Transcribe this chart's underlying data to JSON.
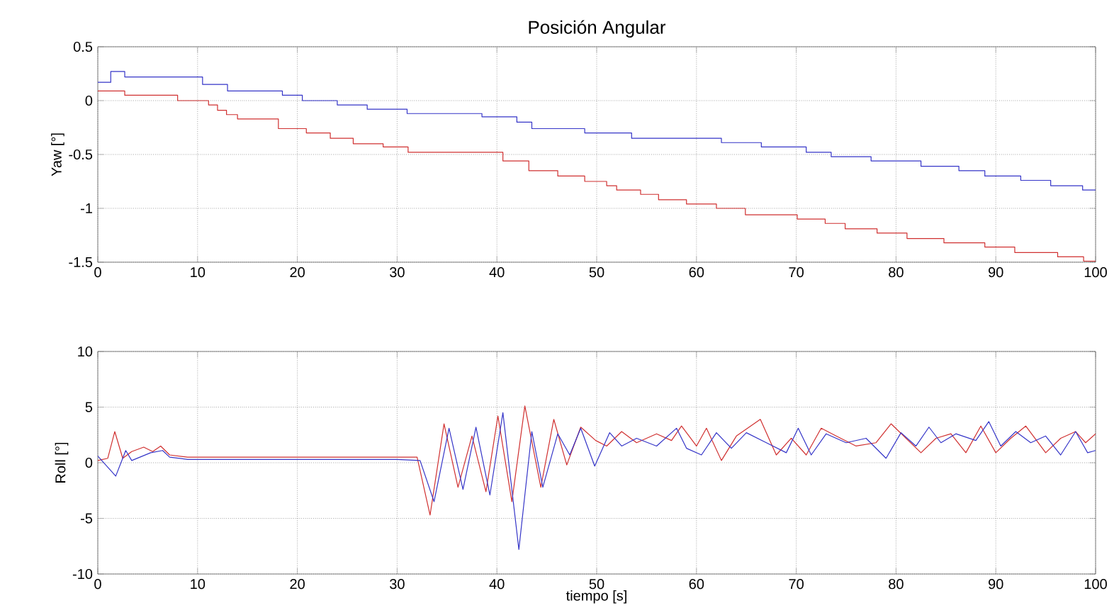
{
  "chart_data": [
    {
      "type": "step",
      "title": "Posición Angular",
      "ylabel": "Yaw [°]",
      "xlim": [
        0,
        100
      ],
      "ylim": [
        -1.5,
        0.5
      ],
      "xticks": [
        0,
        10,
        20,
        30,
        40,
        50,
        60,
        70,
        80,
        90,
        100
      ],
      "yticks": [
        -1.5,
        -1,
        -0.5,
        0,
        0.5
      ],
      "grid": true,
      "series": [
        {
          "color": "#3535c8",
          "x": [
            0,
            1.3,
            2.7,
            10.5,
            13,
            18.5,
            20.5,
            24,
            27,
            31,
            38.5,
            42,
            43.5,
            48.8,
            53.5,
            62.5,
            66.5,
            71,
            73.5,
            77.5,
            82.5,
            86.3,
            88.9,
            92.5,
            95.5,
            98.7,
            100
          ],
          "values": [
            0.17,
            0.27,
            0.22,
            0.15,
            0.09,
            0.05,
            0,
            -0.04,
            -0.08,
            -0.12,
            -0.15,
            -0.2,
            -0.26,
            -0.3,
            -0.35,
            -0.39,
            -0.43,
            -0.48,
            -0.52,
            -0.56,
            -0.61,
            -0.65,
            -0.7,
            -0.74,
            -0.79,
            -0.83,
            -0.83
          ]
        },
        {
          "color": "#d03030",
          "x": [
            0,
            2.7,
            8,
            11.1,
            12,
            12.9,
            14,
            18.1,
            20.9,
            23.3,
            25.6,
            28.6,
            31.1,
            40.6,
            43.2,
            46.1,
            48.8,
            51,
            52,
            54.4,
            56.2,
            59,
            62,
            64.9,
            70.1,
            72.9,
            74.9,
            78.1,
            81.1,
            84.8,
            88.9,
            91.9,
            96.2,
            98.8,
            100
          ],
          "values": [
            0.09,
            0.05,
            0,
            -0.04,
            -0.09,
            -0.13,
            -0.17,
            -0.26,
            -0.3,
            -0.35,
            -0.4,
            -0.43,
            -0.48,
            -0.56,
            -0.65,
            -0.7,
            -0.75,
            -0.79,
            -0.83,
            -0.87,
            -0.92,
            -0.96,
            -1,
            -1.06,
            -1.1,
            -1.14,
            -1.19,
            -1.23,
            -1.28,
            -1.32,
            -1.36,
            -1.41,
            -1.45,
            -1.49,
            -1.49
          ]
        }
      ]
    },
    {
      "type": "line",
      "xlabel": "tiempo [s]",
      "ylabel": "Roll [°]",
      "xlim": [
        0,
        100
      ],
      "ylim": [
        -10,
        10
      ],
      "xticks": [
        0,
        10,
        20,
        30,
        40,
        50,
        60,
        70,
        80,
        90,
        100
      ],
      "yticks": [
        -10,
        -5,
        0,
        5,
        10
      ],
      "grid": true,
      "series": [
        {
          "color": "#d03030",
          "x": [
            0,
            1,
            1.7,
            2.5,
            3.4,
            4.6,
            5.5,
            6.3,
            7.2,
            9,
            12,
            15,
            18,
            21,
            24,
            27,
            30,
            32,
            33.3,
            34.7,
            36.1,
            37.5,
            38.9,
            40.1,
            41.5,
            42.8,
            44.4,
            45.7,
            47,
            48.4,
            49.9,
            51,
            52.5,
            54,
            56,
            57.5,
            58.5,
            60,
            61,
            62.5,
            64,
            66.4,
            68,
            69.5,
            71,
            72.5,
            74,
            76,
            78,
            79.5,
            81,
            82.5,
            84,
            85.5,
            87,
            88.5,
            90,
            91.5,
            93,
            95,
            96.5,
            98,
            99,
            100
          ],
          "values": [
            0.2,
            0.4,
            2.8,
            0.4,
            1,
            1.4,
            1,
            1.5,
            0.7,
            0.5,
            0.5,
            0.5,
            0.5,
            0.5,
            0.5,
            0.5,
            0.5,
            0.5,
            -4.7,
            3.5,
            -2.2,
            2.4,
            -2.6,
            4.2,
            -3.5,
            5.1,
            -2.2,
            3.9,
            -0.2,
            3.2,
            2,
            1.5,
            2.8,
            1.8,
            2.6,
            2,
            3.3,
            1.5,
            3.1,
            0.2,
            2.4,
            3.9,
            0.7,
            2.2,
            0.7,
            3.1,
            2.4,
            1.5,
            1.8,
            3.5,
            2.2,
            0.9,
            2.2,
            2.6,
            0.9,
            3.3,
            0.9,
            2.2,
            3.3,
            0.9,
            2.2,
            2.8,
            1.8,
            2.6
          ]
        },
        {
          "color": "#3535c8",
          "x": [
            0,
            1.8,
            2.8,
            3.4,
            5.3,
            6.5,
            7.2,
            9,
            12,
            15,
            18,
            21,
            24,
            27,
            30,
            32.3,
            33.7,
            35.2,
            36.6,
            37.9,
            39.3,
            40.6,
            42.2,
            43.5,
            44.6,
            46.1,
            47.3,
            48.4,
            49.8,
            51.3,
            52.5,
            54,
            56,
            58,
            59,
            60.5,
            62,
            63.5,
            65,
            67,
            69,
            70.2,
            71.5,
            73,
            75,
            77,
            79,
            80.5,
            82,
            83.3,
            84.5,
            86,
            88,
            89.3,
            90.5,
            92,
            93.5,
            95,
            96.5,
            98,
            99.2,
            100
          ],
          "values": [
            0.6,
            -1.2,
            1.1,
            0.2,
            0.9,
            1.1,
            0.5,
            0.3,
            0.3,
            0.3,
            0.3,
            0.3,
            0.3,
            0.3,
            0.3,
            0.2,
            -3.5,
            3.1,
            -2.4,
            3.2,
            -2.9,
            4.5,
            -7.8,
            2.8,
            -2.2,
            2.6,
            0.7,
            3.1,
            -0.3,
            2.7,
            1.5,
            2.2,
            1.5,
            3.1,
            1.3,
            0.7,
            2.7,
            1.3,
            2.7,
            1.8,
            0.9,
            3.1,
            0.7,
            2.6,
            1.8,
            2.2,
            0.4,
            2.7,
            1.5,
            3.2,
            1.8,
            2.6,
            2,
            3.7,
            1.5,
            2.8,
            1.8,
            2.4,
            0.7,
            2.8,
            0.9,
            1.1
          ]
        }
      ]
    }
  ]
}
